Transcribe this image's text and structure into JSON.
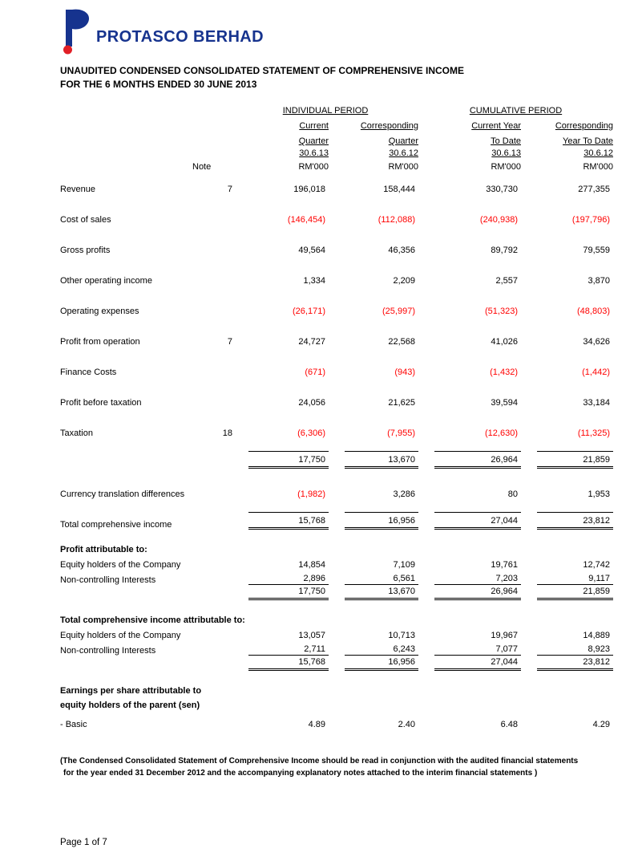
{
  "header": {
    "logo_icon": "protasco-p-logo",
    "company": "PROTASCO BERHAD",
    "title_line1": "UNAUDITED CONDENSED CONSOLIDATED STATEMENT OF COMPREHENSIVE INCOME",
    "title_line2": "FOR THE 6 MONTHS ENDED 30 JUNE 2013"
  },
  "colors": {
    "brand_blue": "#16338e",
    "logo_dot_red": "#e11f26",
    "negative_value_red": "#ff0000"
  },
  "table": {
    "group_headers": [
      "INDIVIDUAL PERIOD",
      "CUMULATIVE PERIOD"
    ],
    "note_label": "Note",
    "columns": [
      {
        "lines": [
          "Current",
          "Quarter",
          "30.6.13"
        ],
        "unit": "RM'000"
      },
      {
        "lines": [
          "Corresponding",
          "Quarter",
          "30.6.12"
        ],
        "unit": "RM'000"
      },
      {
        "lines": [
          "Current Year",
          "To Date",
          "30.6.13"
        ],
        "unit": "RM'000"
      },
      {
        "lines": [
          "Corresponding",
          "Year To Date",
          "30.6.12"
        ],
        "unit": "RM'000"
      }
    ],
    "rows": [
      {
        "type": "data",
        "label": "Revenue",
        "note": "7",
        "values": [
          "196,018",
          "158,444",
          "330,730",
          "277,355"
        ],
        "size": "lg1",
        "border": "none"
      },
      {
        "type": "data",
        "label": "Cost of sales",
        "note": "",
        "values": [
          "(146,454)",
          "(112,088)",
          "(240,938)",
          "(197,796)"
        ],
        "size": "lg",
        "border": "none"
      },
      {
        "type": "data",
        "label": "Gross profits",
        "note": "",
        "values": [
          "49,564",
          "46,356",
          "89,792",
          "79,559"
        ],
        "size": "lg",
        "border": "none"
      },
      {
        "type": "data",
        "label": "Other operating income",
        "note": "",
        "values": [
          "1,334",
          "2,209",
          "2,557",
          "3,870"
        ],
        "size": "lg",
        "border": "none"
      },
      {
        "type": "data",
        "label": "Operating expenses",
        "note": "",
        "values": [
          "(26,171)",
          "(25,997)",
          "(51,323)",
          "(48,803)"
        ],
        "size": "lg",
        "border": "none"
      },
      {
        "type": "data",
        "label": "Profit from operation",
        "note": "7",
        "values": [
          "24,727",
          "22,568",
          "41,026",
          "34,626"
        ],
        "size": "lg",
        "border": "none"
      },
      {
        "type": "data",
        "label": "Finance Costs",
        "note": "",
        "values": [
          "(671)",
          "(943)",
          "(1,432)",
          "(1,442)"
        ],
        "size": "lg",
        "border": "none"
      },
      {
        "type": "data",
        "label": "Profit before taxation",
        "note": "",
        "values": [
          "24,056",
          "21,625",
          "39,594",
          "33,184"
        ],
        "size": "lg",
        "border": "none"
      },
      {
        "type": "data",
        "label": "Taxation",
        "note": "18",
        "values": [
          "(6,306)",
          "(7,955)",
          "(12,630)",
          "(11,325)"
        ],
        "size": "lg",
        "border": "none"
      },
      {
        "type": "total",
        "label": "",
        "note": "",
        "values": [
          "17,750",
          "13,670",
          "26,964",
          "21,859"
        ],
        "size": "lg",
        "border": "t-b2"
      },
      {
        "type": "data",
        "label": "Currency translation differences",
        "note": "",
        "values": [
          "(1,982)",
          "3,286",
          "80",
          "1,953"
        ],
        "size": "lg",
        "border": "none"
      },
      {
        "type": "total",
        "label": "Total comprehensive income",
        "note": "",
        "values": [
          "15,768",
          "16,956",
          "27,044",
          "23,812"
        ],
        "size": "lg",
        "border": "t-b2"
      },
      {
        "type": "section",
        "label": "Profit attributable to:",
        "size": "title"
      },
      {
        "type": "data",
        "label": "Equity holders of the Company",
        "note": "",
        "values": [
          "14,854",
          "7,109",
          "19,761",
          "12,742"
        ],
        "size": "sm",
        "border": "none"
      },
      {
        "type": "data",
        "label": "Non-controlling Interests",
        "note": "",
        "values": [
          "2,896",
          "6,561",
          "7,203",
          "9,117"
        ],
        "size": "sm",
        "border": "b1"
      },
      {
        "type": "total",
        "label": "",
        "note": "",
        "values": [
          "17,750",
          "13,670",
          "26,964",
          "21,859"
        ],
        "size": "sm",
        "border": "b2"
      },
      {
        "type": "section",
        "label": "Total comprehensive income attributable to:",
        "size": "title"
      },
      {
        "type": "data",
        "label": "Equity holders of the Company",
        "note": "",
        "values": [
          "13,057",
          "10,713",
          "19,967",
          "14,889"
        ],
        "size": "sm",
        "border": "none"
      },
      {
        "type": "data",
        "label": "Non-controlling Interests",
        "note": "",
        "values": [
          "2,711",
          "6,243",
          "7,077",
          "8,923"
        ],
        "size": "sm",
        "border": "b1"
      },
      {
        "type": "total",
        "label": "",
        "note": "",
        "values": [
          "15,768",
          "16,956",
          "27,044",
          "23,812"
        ],
        "size": "sm",
        "border": "b2"
      },
      {
        "type": "section",
        "label": "Earnings per share attributable to",
        "size": "title"
      },
      {
        "type": "section",
        "label": "equity holders of the parent (sen)",
        "size": "sub",
        "indent": true
      },
      {
        "type": "data",
        "label": "- Basic",
        "note": "",
        "values": [
          "4.89",
          "2.40",
          "6.48",
          "4.29"
        ],
        "size": "md",
        "border": "none"
      }
    ]
  },
  "footnote": {
    "line1": "(The Condensed Consolidated Statement of Comprehensive Income should be read in conjunction with the audited financial statements",
    "line2": "for the year ended 31 December 2012 and the accompanying explanatory notes attached to the interim financial statements )"
  },
  "page": {
    "footer": "Page 1 of 7"
  }
}
